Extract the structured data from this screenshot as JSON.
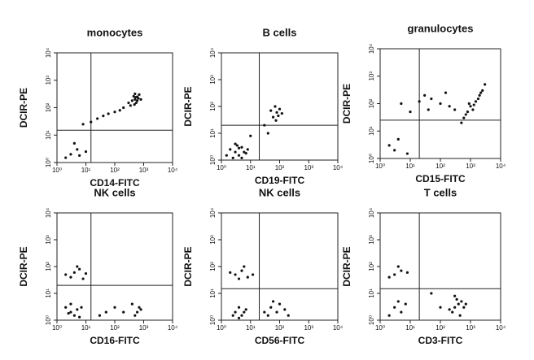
{
  "chart_data": [
    {
      "type": "scatter",
      "title": "monocytes",
      "x_label": "CD14-FITC",
      "y_label": "DCIR-PE",
      "xscale": "log",
      "yscale": "log",
      "color": "#111111",
      "xlim": [
        1,
        10000
      ],
      "ylim": [
        1,
        10000
      ],
      "xticks": [
        {
          "value": 1,
          "label": "10⁰"
        },
        {
          "value": 10,
          "label": "10¹"
        },
        {
          "value": 100,
          "label": "10²"
        },
        {
          "value": 1000,
          "label": "10³"
        },
        {
          "value": 10000,
          "label": "10⁴"
        }
      ],
      "yticks": [
        {
          "value": 1,
          "label": "10⁰"
        },
        {
          "value": 10,
          "label": "10¹"
        },
        {
          "value": 100,
          "label": "10²"
        },
        {
          "value": 1000,
          "label": "10³"
        },
        {
          "value": 10000,
          "label": "10⁴"
        }
      ],
      "quadrant_x": 15,
      "quadrant_y": 15,
      "x": [
        500,
        600,
        400,
        700,
        550,
        650,
        450,
        300,
        800,
        500,
        350,
        200,
        150,
        100,
        60,
        40,
        25,
        15,
        8,
        5,
        3,
        2,
        6,
        4,
        10,
        600,
        520,
        480
      ],
      "y": [
        200,
        250,
        180,
        300,
        150,
        220,
        260,
        150,
        200,
        320,
        120,
        100,
        80,
        70,
        60,
        50,
        40,
        30,
        25,
        3,
        2,
        1.5,
        1.8,
        5,
        2.5,
        180,
        240,
        130
      ]
    },
    {
      "type": "scatter",
      "title": "B cells",
      "x_label": "CD19-FITC",
      "y_label": "DCIR-PE",
      "xscale": "log",
      "yscale": "log",
      "color": "#111111",
      "xlim": [
        1,
        10000
      ],
      "ylim": [
        1,
        10000
      ],
      "xticks": [
        {
          "value": 1,
          "label": "10⁰"
        },
        {
          "value": 10,
          "label": "10¹"
        },
        {
          "value": 100,
          "label": "10²"
        },
        {
          "value": 1000,
          "label": "10³"
        },
        {
          "value": 10000,
          "label": "10⁴"
        }
      ],
      "yticks": [
        {
          "value": 1,
          "label": "10⁰"
        },
        {
          "value": 10,
          "label": "10¹"
        },
        {
          "value": 100,
          "label": "10²"
        },
        {
          "value": 1000,
          "label": "10³"
        },
        {
          "value": 10000,
          "label": "10⁴"
        }
      ],
      "quadrant_x": 20,
      "quadrant_y": 20,
      "x": [
        3,
        4,
        2,
        5,
        6,
        2.5,
        3.5,
        7,
        1.5,
        4,
        5,
        8,
        3,
        80,
        60,
        100,
        70,
        90,
        50,
        120,
        75,
        30,
        40,
        10
      ],
      "y": [
        2,
        1.5,
        2.5,
        3,
        2,
        1.2,
        3.5,
        1.8,
        1.5,
        2.8,
        1.2,
        2.5,
        4,
        60,
        40,
        80,
        100,
        45,
        70,
        55,
        30,
        20,
        10,
        8
      ]
    },
    {
      "type": "scatter",
      "title": "granulocytes",
      "x_label": "CD15-FITC",
      "y_label": "DCIR-PE",
      "xscale": "log",
      "yscale": "log",
      "color": "#111111",
      "xlim": [
        1,
        10000
      ],
      "ylim": [
        1,
        10000
      ],
      "xticks": [
        {
          "value": 1,
          "label": "10⁰"
        },
        {
          "value": 10,
          "label": "10¹"
        },
        {
          "value": 100,
          "label": "10²"
        },
        {
          "value": 1000,
          "label": "10³"
        },
        {
          "value": 10000,
          "label": "10⁴"
        }
      ],
      "yticks": [
        {
          "value": 1,
          "label": "10⁰"
        },
        {
          "value": 10,
          "label": "10¹"
        },
        {
          "value": 100,
          "label": "10²"
        },
        {
          "value": 1000,
          "label": "10³"
        },
        {
          "value": 10000,
          "label": "10⁴"
        }
      ],
      "quadrant_x": 20,
      "quadrant_y": 25,
      "x": [
        1000,
        1500,
        800,
        2000,
        1200,
        700,
        2500,
        1800,
        900,
        600,
        1300,
        3000,
        2200,
        100,
        50,
        200,
        30,
        20,
        300,
        150,
        40,
        10,
        5,
        3,
        2,
        8,
        4,
        500
      ],
      "y": [
        80,
        120,
        50,
        200,
        60,
        40,
        300,
        150,
        100,
        30,
        90,
        500,
        250,
        100,
        150,
        80,
        200,
        120,
        60,
        250,
        60,
        50,
        100,
        2,
        3,
        1.5,
        5,
        20
      ]
    },
    {
      "type": "scatter",
      "title": "NK cells",
      "x_label": "CD16-FITC",
      "y_label": "DCIR-PE",
      "xscale": "log",
      "yscale": "log",
      "color": "#111111",
      "xlim": [
        1,
        10000
      ],
      "ylim": [
        1,
        10000
      ],
      "xticks": [
        {
          "value": 1,
          "label": "10⁰"
        },
        {
          "value": 10,
          "label": "10¹"
        },
        {
          "value": 100,
          "label": "10²"
        },
        {
          "value": 1000,
          "label": "10³"
        },
        {
          "value": 10000,
          "label": "10⁴"
        }
      ],
      "yticks": [
        {
          "value": 1,
          "label": "10⁰"
        },
        {
          "value": 10,
          "label": "10¹"
        },
        {
          "value": 100,
          "label": "10²"
        },
        {
          "value": 1000,
          "label": "10³"
        },
        {
          "value": 10000,
          "label": "10⁴"
        }
      ],
      "quadrant_x": 15,
      "quadrant_y": 20,
      "x": [
        3,
        4,
        2,
        5,
        6,
        3,
        2.5,
        7,
        4,
        3,
        6,
        2,
        8,
        5,
        10,
        600,
        700,
        500,
        800,
        400,
        50,
        100,
        30,
        200
      ],
      "y": [
        2,
        1.5,
        3,
        2.5,
        1.3,
        4,
        1.8,
        3,
        60,
        40,
        80,
        50,
        35,
        100,
        55,
        2,
        3,
        1.5,
        2.5,
        4,
        2,
        3,
        1.5,
        2
      ]
    },
    {
      "type": "scatter",
      "title": "NK cells",
      "x_label": "CD56-FITC",
      "y_label": "DCIR-PE",
      "xscale": "log",
      "yscale": "log",
      "color": "#111111",
      "xlim": [
        1,
        10000
      ],
      "ylim": [
        1,
        10000
      ],
      "xticks": [
        {
          "value": 1,
          "label": "10⁰"
        },
        {
          "value": 10,
          "label": "10¹"
        },
        {
          "value": 100,
          "label": "10²"
        },
        {
          "value": 1000,
          "label": "10³"
        },
        {
          "value": 10000,
          "label": "10⁴"
        }
      ],
      "yticks": [
        {
          "value": 1,
          "label": "10⁰"
        },
        {
          "value": 10,
          "label": "10¹"
        },
        {
          "value": 100,
          "label": "10²"
        },
        {
          "value": 1000,
          "label": "10³"
        },
        {
          "value": 10000,
          "label": "10⁴"
        }
      ],
      "quadrant_x": 20,
      "quadrant_y": 15,
      "x": [
        3,
        5,
        4,
        6,
        2.5,
        7,
        4,
        3,
        5,
        8,
        2,
        12,
        6,
        4,
        50,
        80,
        100,
        40,
        150,
        60,
        30,
        200
      ],
      "y": [
        2,
        1.5,
        3,
        2,
        1.5,
        2.5,
        1.2,
        50,
        70,
        40,
        60,
        50,
        100,
        35,
        3,
        2,
        4,
        1.5,
        2.5,
        5,
        2,
        1.5
      ]
    },
    {
      "type": "scatter",
      "title": "T cells",
      "x_label": "CD3-FITC",
      "y_label": "DCIR-PE",
      "xscale": "log",
      "yscale": "log",
      "color": "#111111",
      "xlim": [
        1,
        10000
      ],
      "ylim": [
        1,
        10000
      ],
      "xticks": [
        {
          "value": 1,
          "label": "10⁰"
        },
        {
          "value": 10,
          "label": "10¹"
        },
        {
          "value": 100,
          "label": "10²"
        },
        {
          "value": 1000,
          "label": "10³"
        },
        {
          "value": 10000,
          "label": "10⁴"
        }
      ],
      "yticks": [
        {
          "value": 1,
          "label": "10⁰"
        },
        {
          "value": 10,
          "label": "10¹"
        },
        {
          "value": 100,
          "label": "10²"
        },
        {
          "value": 1000,
          "label": "10³"
        },
        {
          "value": 10000,
          "label": "10⁴"
        }
      ],
      "quadrant_x": 20,
      "quadrant_y": 15,
      "x": [
        300,
        400,
        250,
        500,
        350,
        200,
        600,
        450,
        300,
        700,
        3,
        5,
        2,
        8,
        4,
        3,
        5,
        2,
        7,
        4,
        50,
        100
      ],
      "y": [
        3,
        4,
        2,
        5,
        6,
        2.5,
        3,
        1.5,
        8,
        4,
        50,
        70,
        40,
        60,
        100,
        3,
        2,
        1.5,
        4,
        5,
        10,
        3
      ]
    }
  ]
}
